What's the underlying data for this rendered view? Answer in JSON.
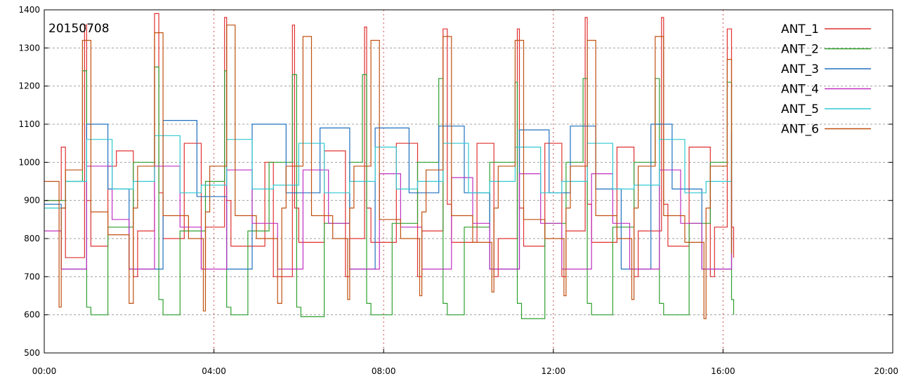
{
  "chart_data": {
    "type": "line",
    "annotation": "20150708",
    "xlabel": "",
    "ylabel": "",
    "xlim": [
      0,
      20
    ],
    "ylim": [
      500,
      1400
    ],
    "x_ticks": [
      {
        "value": 0,
        "label": "00:00"
      },
      {
        "value": 4,
        "label": "04:00"
      },
      {
        "value": 8,
        "label": "08:00"
      },
      {
        "value": 12,
        "label": "12:00"
      },
      {
        "value": 16,
        "label": "16:00"
      },
      {
        "value": 20,
        "label": "20:00"
      }
    ],
    "y_ticks": [
      500,
      600,
      700,
      800,
      900,
      1000,
      1100,
      1200,
      1300,
      1400
    ],
    "grid": true,
    "legend_position": "top-right",
    "series": [
      {
        "name": "ANT_1",
        "color": "#e03030",
        "x": [
          0,
          0.4,
          0.5,
          0.95,
          1.0,
          1.1,
          1.5,
          1.7,
          2.1,
          2.2,
          2.6,
          2.7,
          2.8,
          3.3,
          3.7,
          3.8,
          4.25,
          4.3,
          4.4,
          5.2,
          5.4,
          5.85,
          5.9,
          6.0,
          6.6,
          7.1,
          7.2,
          7.55,
          7.6,
          7.7,
          8.3,
          8.8,
          8.9,
          9.4,
          9.5,
          9.6,
          10.2,
          10.6,
          10.7,
          11.15,
          11.2,
          11.3,
          11.8,
          12.2,
          12.3,
          12.75,
          12.8,
          12.9,
          13.5,
          13.9,
          14.0,
          14.55,
          14.6,
          14.7,
          15.2,
          15.7,
          15.8,
          16.1,
          16.2,
          16.25
        ],
        "y": [
          900,
          1040,
          750,
          1360,
          900,
          780,
          990,
          1030,
          700,
          820,
          1390,
          920,
          800,
          1050,
          720,
          830,
          1380,
          900,
          780,
          1000,
          700,
          1360,
          880,
          790,
          1030,
          700,
          800,
          1355,
          880,
          790,
          1050,
          700,
          820,
          1350,
          890,
          790,
          1050,
          700,
          800,
          1350,
          880,
          780,
          1050,
          700,
          820,
          1380,
          890,
          790,
          1040,
          700,
          820,
          1380,
          890,
          780,
          1040,
          700,
          830,
          1350,
          830,
          750
        ]
      },
      {
        "name": "ANT_2",
        "color": "#30a030",
        "x": [
          0,
          0.5,
          0.9,
          1.0,
          1.1,
          1.5,
          2.1,
          2.6,
          2.7,
          2.8,
          3.2,
          3.8,
          4.25,
          4.3,
          4.4,
          4.8,
          5.3,
          5.85,
          5.95,
          6.05,
          6.6,
          7.2,
          7.5,
          7.6,
          7.7,
          8.2,
          8.8,
          9.3,
          9.4,
          9.5,
          9.9,
          10.5,
          11.1,
          11.15,
          11.25,
          11.8,
          12.3,
          12.7,
          12.8,
          12.9,
          13.4,
          13.9,
          14.4,
          14.5,
          14.6,
          15.2,
          15.7,
          16.1,
          16.2,
          16.25
        ],
        "y": [
          900,
          950,
          1240,
          620,
          600,
          830,
          1000,
          1250,
          640,
          600,
          820,
          950,
          1240,
          620,
          600,
          820,
          1000,
          1230,
          620,
          595,
          840,
          1000,
          1230,
          630,
          600,
          840,
          1000,
          1220,
          630,
          600,
          830,
          1000,
          1210,
          630,
          590,
          840,
          1000,
          1220,
          630,
          600,
          830,
          1000,
          1220,
          630,
          600,
          840,
          1000,
          1210,
          640,
          600
        ]
      },
      {
        "name": "ANT_3",
        "color": "#2070c0",
        "x": [
          0,
          0.4,
          1.0,
          1.5,
          2.0,
          2.8,
          3.6,
          4.3,
          4.9,
          5.7,
          6.5,
          7.2,
          7.8,
          8.6,
          9.3,
          9.9,
          10.5,
          11.2,
          11.9,
          12.4,
          13.0,
          13.6,
          14.3,
          14.8,
          15.5,
          16.2
        ],
        "y": [
          890,
          720,
          1100,
          930,
          720,
          1110,
          910,
          720,
          1100,
          920,
          1090,
          720,
          1090,
          920,
          1095,
          920,
          720,
          1085,
          920,
          1095,
          930,
          720,
          1100,
          930,
          720,
          1080
        ]
      },
      {
        "name": "ANT_4",
        "color": "#c030c0",
        "x": [
          0,
          0.4,
          1.0,
          1.6,
          2.0,
          2.6,
          3.2,
          3.7,
          4.3,
          4.9,
          5.5,
          6.1,
          6.7,
          7.2,
          7.9,
          8.4,
          8.9,
          9.6,
          10.1,
          10.5,
          11.2,
          11.7,
          12.2,
          12.9,
          13.4,
          13.8,
          14.5,
          15.0,
          15.5,
          16.2
        ],
        "y": [
          820,
          720,
          990,
          850,
          720,
          990,
          830,
          720,
          980,
          840,
          720,
          980,
          840,
          720,
          970,
          830,
          720,
          960,
          840,
          720,
          970,
          840,
          720,
          970,
          840,
          720,
          980,
          840,
          720,
          960
        ]
      },
      {
        "name": "ANT_5",
        "color": "#30c8d0",
        "x": [
          0,
          0.5,
          1.0,
          1.6,
          2.1,
          2.6,
          3.2,
          3.7,
          4.3,
          4.9,
          5.4,
          6.0,
          6.6,
          7.2,
          7.8,
          8.3,
          8.8,
          9.4,
          10.0,
          10.5,
          11.1,
          11.7,
          12.2,
          12.8,
          13.4,
          13.9,
          14.5,
          15.1,
          15.6,
          16.2
        ],
        "y": [
          880,
          950,
          1060,
          930,
          950,
          1070,
          920,
          940,
          1060,
          930,
          940,
          1050,
          920,
          950,
          1040,
          930,
          950,
          1050,
          920,
          950,
          1040,
          920,
          950,
          1050,
          930,
          940,
          1060,
          920,
          950,
          1030
        ]
      },
      {
        "name": "ANT_6",
        "color": "#c05010",
        "x": [
          0,
          0.35,
          0.4,
          0.5,
          0.9,
          1.1,
          1.5,
          2.0,
          2.1,
          2.2,
          2.6,
          2.8,
          3.4,
          3.75,
          3.8,
          3.9,
          4.3,
          4.5,
          5.0,
          5.5,
          5.6,
          5.7,
          6.1,
          6.3,
          6.8,
          7.15,
          7.2,
          7.3,
          7.7,
          7.9,
          8.4,
          8.85,
          8.9,
          9.0,
          9.4,
          9.6,
          10.1,
          10.55,
          10.6,
          10.7,
          11.1,
          11.3,
          11.8,
          12.25,
          12.3,
          12.4,
          12.8,
          13.0,
          13.5,
          13.85,
          13.9,
          14.0,
          14.4,
          14.6,
          15.1,
          15.55,
          15.6,
          15.7,
          16.1,
          16.2
        ],
        "y": [
          950,
          620,
          880,
          980,
          1320,
          870,
          810,
          630,
          880,
          990,
          1340,
          860,
          800,
          610,
          870,
          990,
          1360,
          860,
          800,
          630,
          880,
          990,
          1330,
          860,
          800,
          640,
          880,
          990,
          1320,
          850,
          800,
          650,
          870,
          980,
          1330,
          860,
          790,
          660,
          880,
          990,
          1320,
          850,
          800,
          650,
          880,
          990,
          1320,
          860,
          800,
          640,
          880,
          990,
          1330,
          860,
          790,
          590,
          880,
          990,
          1270,
          760
        ]
      }
    ]
  }
}
